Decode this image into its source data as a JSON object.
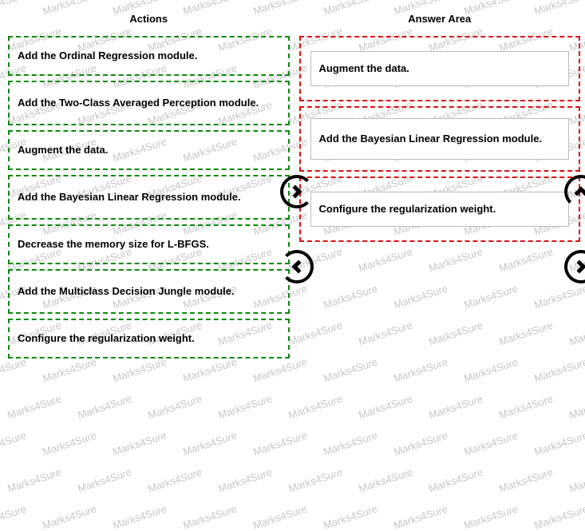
{
  "watermark_text": "Marks4Sure",
  "headings": {
    "actions": "Actions",
    "answer_area": "Answer Area"
  },
  "actions": [
    {
      "label": "Add the Ordinal Regression module."
    },
    {
      "label": "Add the Two-Class Averaged Perception module."
    },
    {
      "label": "Augment the data."
    },
    {
      "label": "Add the Bayesian Linear Regression module."
    },
    {
      "label": "Decrease the memory size for L-BFGS."
    },
    {
      "label": "Add the Multiclass Decision Jungle module."
    },
    {
      "label": "Configure the regularization weight."
    }
  ],
  "answers": [
    {
      "label": "Augment the data."
    },
    {
      "label": "Add the Bayesian Linear Regression module."
    },
    {
      "label": "Configure the regularization weight."
    }
  ],
  "colors": {
    "source_border": "#0a8a0a",
    "target_border": "#d11",
    "watermark": "#c7c7c7",
    "text": "#000000",
    "background": "#ffffff"
  }
}
